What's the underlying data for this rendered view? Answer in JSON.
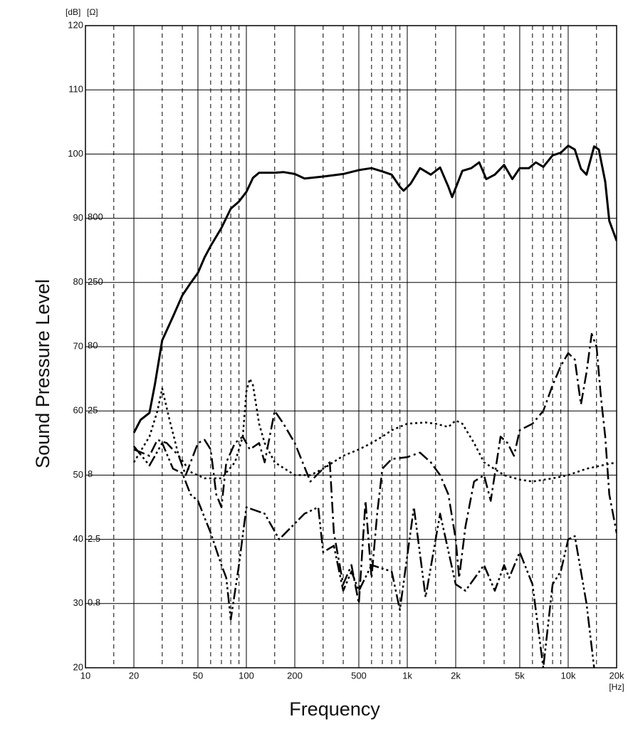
{
  "chart_data": {
    "type": "line",
    "y_unit": "[dB]",
    "y2_unit": "[Ω]",
    "x_unit": "[Hz]",
    "ylabel": "Sound Pressure Level",
    "xlabel": "Frequency",
    "xscale": "log",
    "xlim": [
      10,
      20000
    ],
    "xticks": [
      10,
      20,
      50,
      100,
      200,
      500,
      {
        "value": 1000,
        "label": "1k"
      },
      {
        "value": 2000,
        "label": "2k"
      },
      {
        "value": 5000,
        "label": "5k"
      },
      {
        "value": 10000,
        "label": "10k"
      },
      {
        "value": 20000,
        "label": "20k"
      }
    ],
    "xminor": [
      15,
      30,
      40,
      60,
      70,
      80,
      90,
      150,
      300,
      400,
      600,
      700,
      800,
      900,
      1500,
      3000,
      4000,
      6000,
      7000,
      8000,
      9000,
      15000
    ],
    "ylim": [
      20,
      120
    ],
    "yticks": [
      20,
      30,
      40,
      50,
      60,
      70,
      80,
      90,
      100,
      110,
      120
    ],
    "y2scale": "log",
    "y2lim": [
      0.25,
      25000
    ],
    "y2ticks": [
      0.8,
      2.5,
      8,
      25,
      80,
      250,
      800
    ],
    "grid": true,
    "series": [
      {
        "color": "#000000",
        "dash": "none",
        "width": 3,
        "x": [
          20,
          22,
          25,
          27,
          30,
          35,
          40,
          45,
          50,
          55,
          60,
          70,
          80,
          90,
          100,
          110,
          120,
          150,
          170,
          200,
          230,
          300,
          400,
          500,
          600,
          700,
          800,
          900,
          950,
          1050,
          1200,
          1400,
          1600,
          1800,
          1900,
          2200,
          2500,
          2800,
          3100,
          3500,
          4000,
          4500,
          5000,
          5700,
          6300,
          7000,
          8000,
          9000,
          10000,
          11000,
          12000,
          13000,
          14500,
          15500,
          17000,
          18000,
          20000
        ],
        "values": [
          56.6,
          58.6,
          59.7,
          64.1,
          71,
          74.7,
          78,
          79.9,
          81.5,
          83.9,
          85.7,
          88.5,
          91.5,
          92.6,
          94.1,
          96.3,
          97.1,
          97.1,
          97.2,
          96.9,
          96.2,
          96.5,
          96.9,
          97.5,
          97.8,
          97.3,
          96.8,
          94.9,
          94.3,
          95.4,
          97.8,
          96.8,
          97.9,
          94.9,
          93.3,
          97.4,
          97.8,
          98.7,
          96.1,
          96.8,
          98.3,
          96.1,
          97.8,
          97.8,
          98.7,
          98,
          99.8,
          100.2,
          101.3,
          100.7,
          97.7,
          96.8,
          101.2,
          100.7,
          95.7,
          89.6,
          86.5
        ]
      },
      {
        "color": "#000000",
        "dash": "16 5 3 5",
        "width": 2.5,
        "x": [
          20,
          25,
          28,
          32,
          38,
          42,
          50,
          55,
          60,
          65,
          70,
          75,
          85,
          95,
          105,
          120,
          130,
          150,
          170,
          200,
          250,
          300,
          330,
          350,
          400,
          450,
          500,
          550,
          600,
          650,
          700,
          800,
          1000,
          1200,
          1400,
          1600,
          1800,
          2000,
          2100,
          2300,
          2600,
          3000,
          3300,
          3800,
          4200,
          4600,
          5000,
          6000,
          7000,
          8000,
          9000,
          10000,
          11000,
          12000,
          13000,
          14000,
          15000,
          16000,
          17000,
          18000,
          20000
        ],
        "values": [
          54,
          53,
          55.5,
          55,
          53,
          50,
          55,
          55.5,
          54,
          47,
          45,
          52,
          55,
          56,
          54,
          55,
          52,
          60,
          58,
          55,
          49,
          51,
          52,
          41,
          33,
          36,
          30,
          46,
          34,
          44,
          51,
          52.5,
          52.8,
          53.5,
          52,
          50,
          47,
          40,
          34,
          42,
          49,
          50,
          46,
          56,
          55,
          53,
          57,
          58,
          60,
          64,
          67,
          69,
          68,
          61,
          66,
          72,
          70,
          62,
          56,
          47,
          41
        ]
      },
      {
        "color": "#000000",
        "dash": "3 4",
        "width": 2.5,
        "x": [
          20,
          25,
          28,
          30,
          33,
          38,
          45,
          55,
          70,
          85,
          95,
          100,
          105,
          110,
          120,
          130,
          150,
          200,
          250,
          300,
          400,
          500,
          600,
          700,
          800,
          1000,
          1300,
          1500,
          1800,
          2000,
          2200,
          2600,
          3000,
          4000,
          5000,
          6000,
          8000,
          10000,
          13000,
          20000
        ],
        "values": [
          52,
          56,
          60,
          63.5,
          59,
          53,
          50.5,
          49.5,
          49.5,
          52,
          56,
          63,
          65,
          64,
          58,
          55,
          52,
          50,
          50,
          51,
          53,
          54,
          55,
          56,
          57,
          58,
          58.2,
          58,
          57.5,
          58.5,
          58,
          55,
          52,
          50,
          49.3,
          49,
          49.5,
          50,
          51,
          52
        ]
      },
      {
        "color": "#000000",
        "dash": "16 4 3 4 3 4",
        "width": 2.5,
        "x": [
          20,
          25,
          30,
          35,
          40,
          45,
          50,
          60,
          70,
          75,
          80,
          90,
          100,
          130,
          160,
          230,
          280,
          300,
          350,
          400,
          450,
          500,
          600,
          800,
          900,
          1100,
          1300,
          1600,
          2000,
          2300,
          3000,
          3500,
          4000,
          4300,
          5000,
          6000,
          6600,
          7000,
          8000,
          9000,
          10000,
          11000,
          13000,
          14500
        ],
        "values": [
          54.5,
          51.5,
          55,
          51,
          50.3,
          47,
          46,
          41,
          36,
          34,
          27.5,
          36,
          45,
          44,
          40,
          44,
          45,
          38,
          39,
          32,
          35,
          32,
          36,
          35,
          29,
          45,
          31,
          44,
          33,
          32,
          36,
          32,
          36,
          34,
          38,
          33,
          25,
          20,
          33,
          35,
          40,
          40.5,
          30,
          20
        ]
      }
    ]
  }
}
